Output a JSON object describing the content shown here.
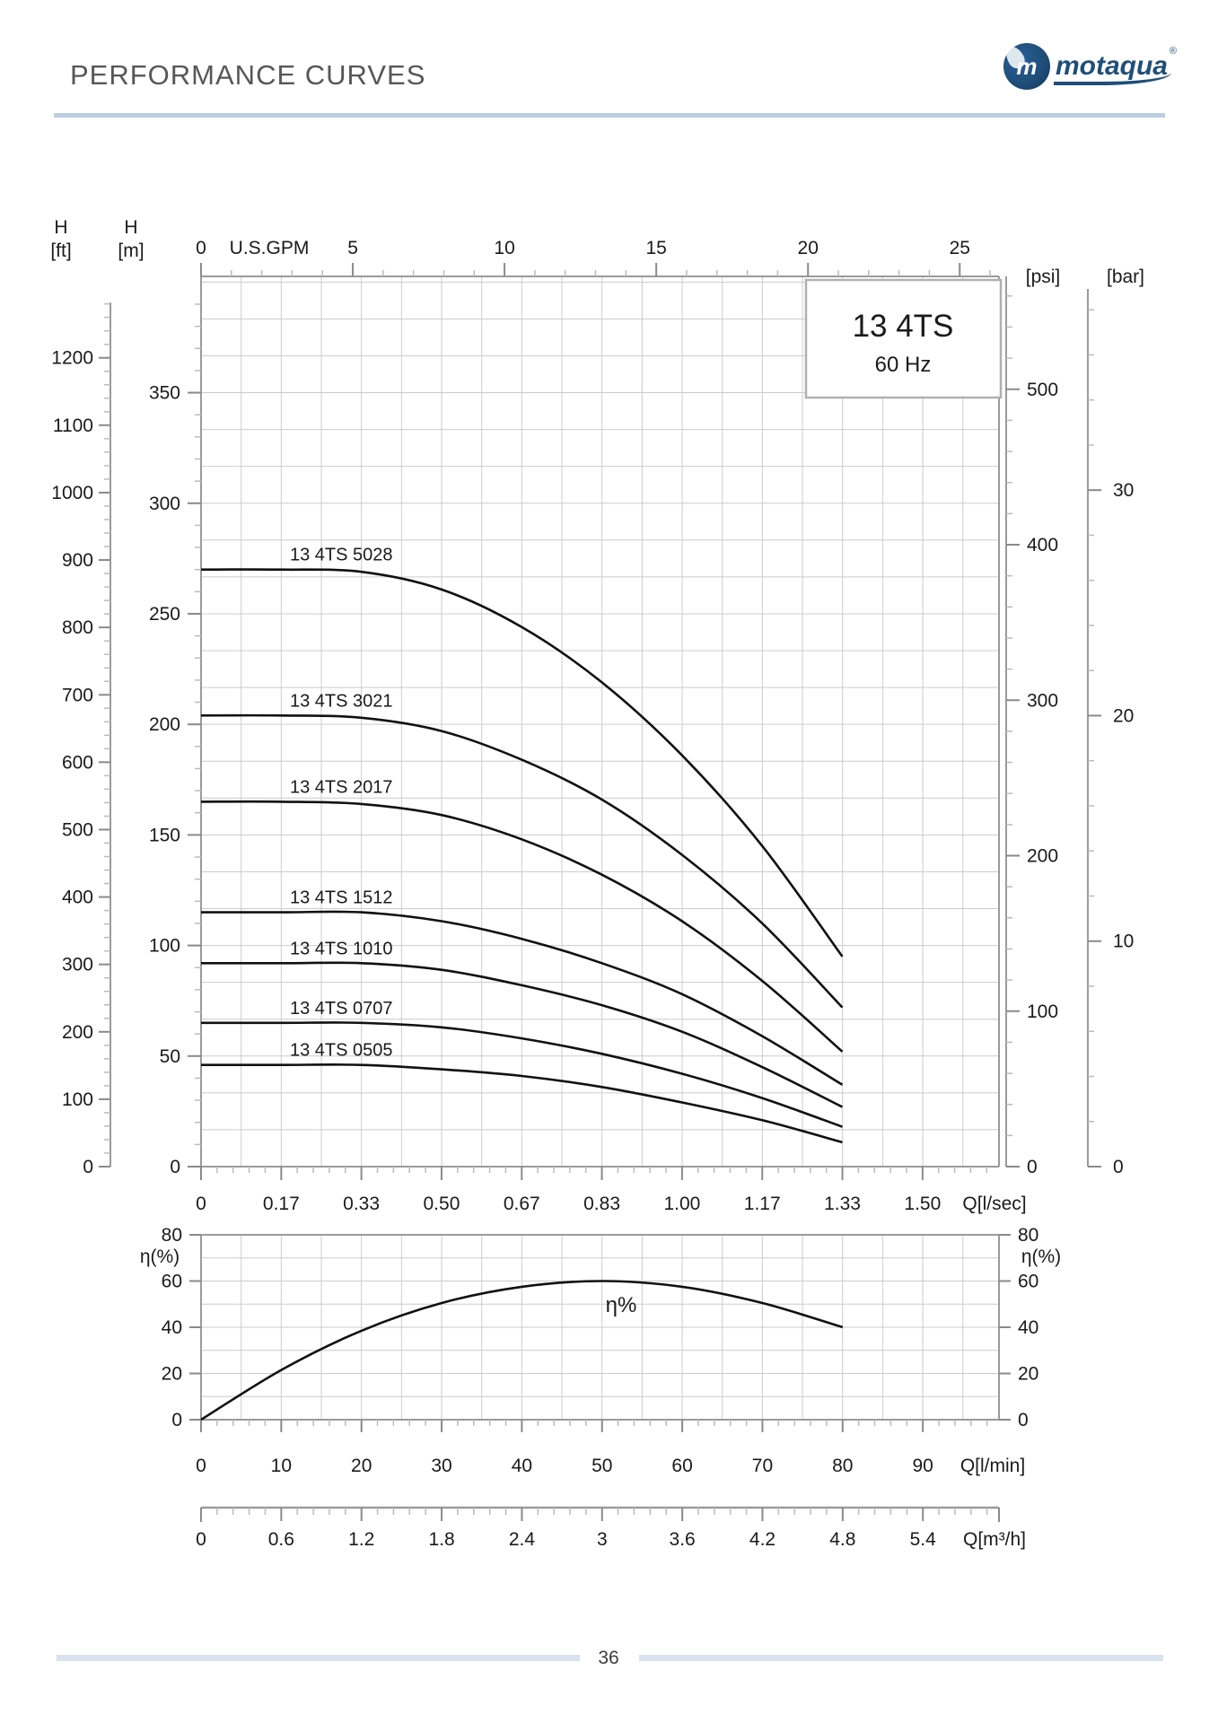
{
  "page": {
    "title": "PERFORMANCE CURVES",
    "page_number": "36",
    "logo": {
      "brand": "motaqua",
      "monogram": "m",
      "registered_mark": "®",
      "color": "#1f4e79"
    }
  },
  "model_box": {
    "model": "13 4TS",
    "frequency": "60 Hz"
  },
  "chart_data": [
    {
      "type": "line",
      "title": "13 4TS 60 Hz head-capacity curves",
      "xlabel": "Q[l/sec]",
      "ylabel": "H [m]",
      "x_lsec": [
        0,
        0.1667,
        0.3333,
        0.5,
        0.6667,
        0.8333,
        1.0,
        1.1667,
        1.3333
      ],
      "xlim_lsec": [
        0,
        1.66
      ],
      "ylim_m": [
        0,
        402
      ],
      "grid": true,
      "legend_position": "inline-labels",
      "series": [
        {
          "name": "13 4TS 5028",
          "values_m": [
            270,
            270,
            269,
            261,
            244,
            219,
            186,
            145,
            95
          ]
        },
        {
          "name": "13 4TS 3021",
          "values_m": [
            204,
            204,
            203,
            197,
            184,
            166,
            141,
            110,
            72
          ]
        },
        {
          "name": "13 4TS 2017",
          "values_m": [
            165,
            165,
            164,
            159,
            148,
            132,
            111,
            84,
            52
          ]
        },
        {
          "name": "13 4TS 1512",
          "values_m": [
            115,
            115,
            115,
            111,
            103,
            92,
            78,
            59,
            37
          ]
        },
        {
          "name": "13 4TS 1010",
          "values_m": [
            92,
            92,
            92,
            89,
            82,
            73,
            61,
            45,
            27
          ]
        },
        {
          "name": "13 4TS 0707",
          "values_m": [
            65,
            65,
            65,
            63,
            58,
            51,
            42,
            31,
            18
          ]
        },
        {
          "name": "13 4TS 0505",
          "values_m": [
            46,
            46,
            46,
            44,
            41,
            36,
            29,
            21,
            11
          ]
        }
      ],
      "axes": {
        "top_gpm": {
          "title": "U.S.GPM",
          "tick_values": [
            0,
            5,
            10,
            15,
            20,
            25
          ],
          "tick_labels": [
            "0",
            "5",
            "10",
            "15",
            "20",
            "25"
          ]
        },
        "left_ft": {
          "title_line1": "H",
          "title_line2": "[ft]",
          "tick_values": [
            0,
            100,
            200,
            300,
            400,
            500,
            600,
            700,
            800,
            900,
            1000,
            1100,
            1200
          ],
          "tick_labels": [
            "0",
            "100",
            "200",
            "300",
            "400",
            "500",
            "600",
            "700",
            "800",
            "900",
            "1000",
            "1100",
            "1200"
          ]
        },
        "left_m": {
          "title_line1": "H",
          "title_line2": "[m]",
          "tick_values": [
            0,
            50,
            100,
            150,
            200,
            250,
            300,
            350
          ],
          "tick_labels": [
            "0",
            "50",
            "100",
            "150",
            "200",
            "250",
            "300",
            "350"
          ]
        },
        "right_psi": {
          "title": "[psi]",
          "tick_values": [
            0,
            100,
            200,
            300,
            400,
            500
          ],
          "tick_labels": [
            "0",
            "100",
            "200",
            "300",
            "400",
            "500"
          ]
        },
        "right_bar": {
          "title": "[bar]",
          "tick_values": [
            0,
            10,
            20,
            30
          ],
          "tick_labels": [
            "0",
            "10",
            "20",
            "30"
          ]
        },
        "bottom_lsec": {
          "title": "Q[l/sec]",
          "tick_values": [
            0,
            0.1667,
            0.3333,
            0.5,
            0.6667,
            0.8333,
            1.0,
            1.1667,
            1.3333,
            1.5
          ],
          "tick_labels": [
            "0",
            "0.17",
            "0.33",
            "0.50",
            "0.67",
            "0.83",
            "1.00",
            "1.17",
            "1.33",
            "1.50"
          ]
        }
      }
    },
    {
      "type": "line",
      "title": "Efficiency curve",
      "xlabel": "Q[l/min]",
      "ylabel": "η(%)",
      "curve_label": "η%",
      "x_lmin": [
        0,
        10,
        20,
        30,
        40,
        50,
        60,
        70,
        80
      ],
      "xlim_lmin": [
        0,
        99.5
      ],
      "ylim_pct": [
        0,
        80
      ],
      "grid": true,
      "series": [
        {
          "name": "η%",
          "values_pct": [
            0,
            21.5,
            38.5,
            50.5,
            57.5,
            60,
            57.5,
            50.5,
            40
          ]
        }
      ],
      "axes": {
        "eff_left": {
          "title": "η(%)",
          "tick_values": [
            0,
            20,
            40,
            60,
            80
          ],
          "tick_labels": [
            "0",
            "20",
            "40",
            "60",
            "80"
          ]
        },
        "eff_right": {
          "title": "η(%)",
          "tick_values": [
            0,
            20,
            40,
            60,
            80
          ],
          "tick_labels": [
            "0",
            "20",
            "40",
            "60",
            "80"
          ]
        },
        "bottom_lmin": {
          "title": "Q[l/min]",
          "tick_values": [
            0,
            10,
            20,
            30,
            40,
            50,
            60,
            70,
            80,
            90
          ],
          "tick_labels": [
            "0",
            "10",
            "20",
            "30",
            "40",
            "50",
            "60",
            "70",
            "80",
            "90"
          ]
        },
        "bottom_m3h": {
          "title": "Q[m³/h]",
          "tick_values": [
            0,
            0.6,
            1.2,
            1.8,
            2.4,
            3,
            3.6,
            4.2,
            4.8,
            5.4
          ],
          "tick_labels": [
            "0",
            "0.6",
            "1.2",
            "1.8",
            "2.4",
            "3",
            "3.6",
            "4.2",
            "4.8",
            "5.4"
          ]
        }
      }
    }
  ],
  "colors": {
    "curve": "#111111",
    "grid": "#cccccc",
    "axis": "#9a9a9a",
    "tick_major": "#8a8a8a",
    "tick_minor": "#bbbbbb",
    "header_rule": "#b9cfe0",
    "footer_bar": "#d9e1ed",
    "brand": "#1f4e79",
    "box_border": "#b0b0b0"
  }
}
